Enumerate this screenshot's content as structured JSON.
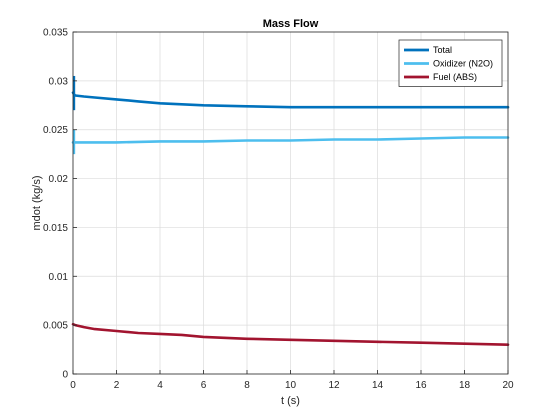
{
  "chart_data": {
    "type": "line",
    "title": "Mass Flow",
    "xlabel": "t (s)",
    "ylabel": "mdot (kg/s)",
    "xlim": [
      0,
      20
    ],
    "ylim": [
      0,
      0.035
    ],
    "xticks": [
      0,
      2,
      4,
      6,
      8,
      10,
      12,
      14,
      16,
      18,
      20
    ],
    "xtick_labels": [
      "0",
      "2",
      "4",
      "6",
      "8",
      "10",
      "12",
      "14",
      "16",
      "18",
      "20"
    ],
    "yticks": [
      0,
      0.005,
      0.01,
      0.015,
      0.02,
      0.025,
      0.03,
      0.035
    ],
    "ytick_labels": [
      "0",
      "0.005",
      "0.01",
      "0.015",
      "0.02",
      "0.025",
      "0.03",
      "0.035"
    ],
    "grid": true,
    "legend_position": "top-right",
    "series": [
      {
        "name": "Total",
        "color": "#0072bd",
        "x": [
          0,
          0.05,
          0.1,
          0.5,
          1,
          2,
          3,
          4,
          5,
          6,
          8,
          10,
          12,
          14,
          16,
          18,
          20
        ],
        "y": [
          0.0288,
          0.0286,
          0.0285,
          0.0284,
          0.0283,
          0.0281,
          0.0279,
          0.0277,
          0.0276,
          0.0275,
          0.0274,
          0.0273,
          0.0273,
          0.0273,
          0.0273,
          0.0273,
          0.0273
        ],
        "spike": {
          "x": 0.05,
          "y_min": 0.027,
          "y_max": 0.0305
        }
      },
      {
        "name": "Oxidizer (N2O)",
        "color": "#4dbeee",
        "x": [
          0,
          0.05,
          0.1,
          1,
          2,
          4,
          6,
          8,
          10,
          12,
          14,
          16,
          18,
          20
        ],
        "y": [
          0.0237,
          0.0237,
          0.0237,
          0.0237,
          0.0237,
          0.0238,
          0.0238,
          0.0239,
          0.0239,
          0.024,
          0.024,
          0.0241,
          0.0242,
          0.0242
        ],
        "spike": {
          "x": 0.05,
          "y_min": 0.0225,
          "y_max": 0.025
        }
      },
      {
        "name": "Fuel (ABS)",
        "color": "#a2142f",
        "x": [
          0,
          0.1,
          0.5,
          1,
          2,
          3,
          4,
          5,
          6,
          8,
          10,
          12,
          14,
          16,
          18,
          20
        ],
        "y": [
          0.0051,
          0.005,
          0.0048,
          0.0046,
          0.0044,
          0.0042,
          0.0041,
          0.004,
          0.0038,
          0.0036,
          0.0035,
          0.0034,
          0.0033,
          0.0032,
          0.0031,
          0.003
        ],
        "spike": null
      }
    ]
  }
}
